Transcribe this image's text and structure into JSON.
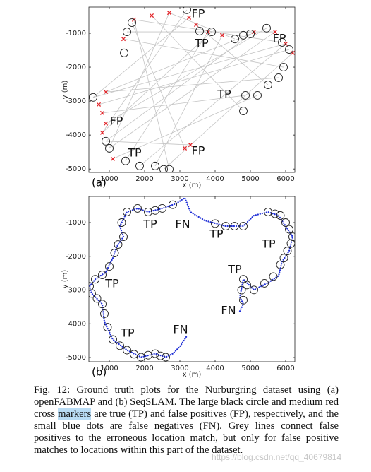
{
  "chart_data": [
    {
      "type": "scatter",
      "panel_label": "(a)",
      "xlabel": "x (m)",
      "ylabel": "y (m)",
      "xlim": [
        420,
        6260
      ],
      "ylim": [
        -5100,
        -230
      ],
      "xticks": [
        1000,
        2000,
        3000,
        4000,
        5000,
        6000
      ],
      "yticks": [
        -1000,
        -2000,
        -3000,
        -4000,
        -5000
      ],
      "annotations": [
        "FP",
        "FP",
        "TP",
        "TP",
        "FP",
        "TP",
        "FP"
      ],
      "series": [
        {
          "marker": "segment",
          "color": "#c4c4c4",
          "x": [
            1700,
            2200,
            2700,
            3260,
            3460,
            3800,
            4200,
            5100,
            5700,
            6000,
            6200,
            900,
            700,
            800,
            900,
            800,
            1100,
            3140,
            3300,
            1400,
            1700,
            2700,
            900,
            800,
            6000,
            5700
          ],
          "y": [
            -600,
            -480,
            -400,
            -540,
            -750,
            -960,
            -1060,
            -960,
            -960,
            -1310,
            -1580,
            -2730,
            -3100,
            -3350,
            -3660,
            -3930,
            -4700,
            -4390,
            -4290,
            -1170,
            -600,
            -400,
            -2730,
            -3930,
            -1310,
            -960
          ],
          "x2": [
            5900,
            4800,
            1000,
            540,
            5500,
            1460,
            2300,
            900,
            1000,
            540,
            2540,
            5800,
            6100,
            4860,
            5460,
            3200,
            5200,
            1640,
            900,
            5940,
            2700,
            4560,
            5000,
            3900,
            1860,
            1500
          ],
          "y2": [
            -1270,
            -3290,
            -4390,
            -2890,
            -2520,
            -4760,
            -4910,
            -4180,
            -4390,
            -2890,
            -5010,
            -2310,
            -1480,
            -2830,
            -850,
            -310,
            -2830,
            -690,
            -4180,
            -2000,
            -5010,
            -1170,
            -1020,
            -960,
            -4910,
            -960
          ]
        },
        {
          "marker": "cross",
          "color": "#e3262b",
          "x": [
            1700,
            2200,
            2700,
            3260,
            3460,
            3800,
            4200,
            5100,
            5700,
            6000,
            6200,
            900,
            700,
            800,
            900,
            800,
            1100,
            3140,
            3300,
            1400
          ],
          "y": [
            -600,
            -480,
            -400,
            -540,
            -750,
            -960,
            -1060,
            -960,
            -960,
            -1310,
            -1580,
            -2730,
            -3100,
            -3350,
            -3660,
            -3930,
            -4700,
            -4390,
            -4290,
            -1170
          ]
        },
        {
          "marker": "circle",
          "color": "#222222",
          "x": [
            1640,
            1500,
            1420,
            3200,
            3560,
            3900,
            4560,
            4800,
            5000,
            5460,
            5900,
            6100,
            5940,
            5800,
            5500,
            5200,
            4860,
            4800,
            540,
            900,
            1000,
            1460,
            1860,
            2300,
            2540,
            2700
          ],
          "y": [
            -690,
            -960,
            -1580,
            -310,
            -940,
            -960,
            -1170,
            -1060,
            -1020,
            -850,
            -1270,
            -1480,
            -2000,
            -2310,
            -2520,
            -2830,
            -2830,
            -3290,
            -2890,
            -4180,
            -4390,
            -4760,
            -4910,
            -4910,
            -5010,
            -5010
          ]
        }
      ]
    },
    {
      "type": "scatter",
      "panel_label": "(b)",
      "xlabel": "x (m)",
      "ylabel": "y (m)",
      "xlim": [
        420,
        6260
      ],
      "ylim": [
        -5125,
        -225
      ],
      "xticks": [
        1000,
        2000,
        3000,
        4000,
        5000,
        6000
      ],
      "yticks": [
        -1000,
        -2000,
        -3000,
        -4000,
        -5000
      ],
      "annotations": [
        "TP",
        "FN",
        "TP",
        "TP",
        "TP",
        "FN",
        "TP",
        "TP",
        "FN"
      ],
      "series": [
        {
          "marker": "dotted-line",
          "color": "#1f2fd6",
          "x": [
            4700,
            4800,
            4700,
            4800,
            5100,
            5500,
            5800,
            5900,
            6100,
            6200,
            6000,
            5800,
            5500,
            5100,
            4800,
            4300,
            3700,
            3300,
            3140,
            2900,
            2500,
            2100,
            1800,
            1500,
            1300,
            1400,
            1200,
            1100,
            900,
            600,
            440,
            500,
            800,
            860,
            1100,
            1500,
            1900,
            2300,
            2600,
            2800,
            3000,
            3200
          ],
          "y": [
            -3625,
            -3415,
            -3205,
            -2680,
            -2995,
            -2785,
            -2575,
            -2155,
            -1840,
            -1420,
            -1105,
            -790,
            -685,
            -790,
            -1105,
            -1105,
            -935,
            -685,
            -265,
            -435,
            -580,
            -685,
            -580,
            -685,
            -1105,
            -1420,
            -1735,
            -2050,
            -2470,
            -2680,
            -2890,
            -3100,
            -3415,
            -3940,
            -4465,
            -4780,
            -4990,
            -4885,
            -4990,
            -4885,
            -4675,
            -4360
          ]
        },
        {
          "marker": "circle",
          "color": "#222222",
          "x": [
            2800,
            2500,
            2300,
            2100,
            1800,
            1500,
            1350,
            1400,
            1250,
            1150,
            1000,
            800,
            600,
            440,
            500,
            650,
            800,
            860,
            950,
            1100,
            1300,
            1500,
            1700,
            1900,
            2100,
            2300,
            2450,
            2600,
            4000,
            4300,
            4550,
            4800,
            5500,
            5700,
            5850,
            6000,
            6100,
            6200,
            6150,
            6050,
            5950,
            5850,
            5650,
            5400,
            5100,
            4900,
            4800,
            4750,
            4800
          ],
          "y": [
            -470,
            -580,
            -640,
            -685,
            -580,
            -685,
            -1000,
            -1420,
            -1650,
            -1900,
            -2300,
            -2550,
            -2680,
            -2890,
            -3100,
            -3250,
            -3415,
            -3700,
            -4100,
            -4465,
            -4650,
            -4780,
            -4900,
            -4990,
            -4930,
            -4885,
            -4950,
            -4990,
            -1030,
            -1105,
            -1105,
            -1105,
            -685,
            -740,
            -790,
            -1000,
            -1200,
            -1420,
            -1620,
            -1840,
            -2050,
            -2250,
            -2600,
            -2800,
            -2995,
            -2850,
            -2680,
            -3000,
            -3300
          ]
        }
      ]
    }
  ],
  "caption": {
    "before": "Fig. 12: Ground truth plots for the Nurburgring dataset using (a) openFABMAP and (b) SeqSLAM. The large black circle and medium red cross ",
    "highlight": "markers",
    "after": " are true (TP) and false positives (FP), respectively, and the small blue dots are false negatives (FN). Grey lines connect false positives to the erroneous location match, but only for false positive matches to locations within this part of the dataset."
  },
  "watermark": "https://blog.csdn.net/qq_40679814"
}
